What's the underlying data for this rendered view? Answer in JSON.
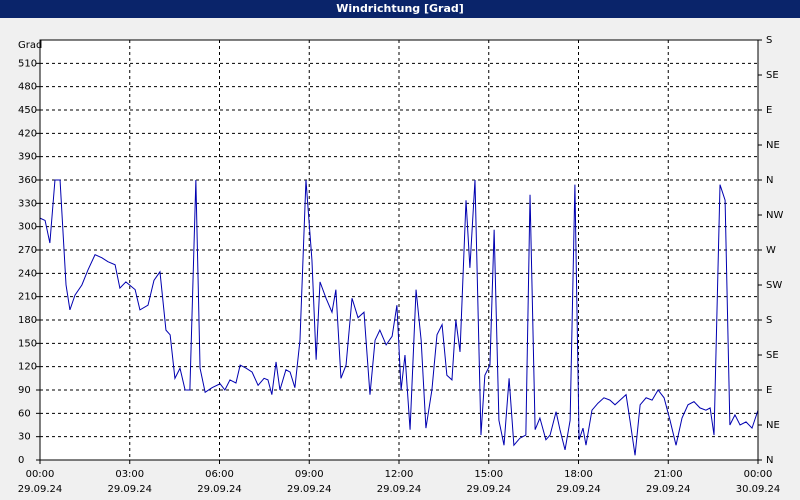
{
  "chart_data": {
    "type": "line",
    "title": "Windrichtung [Grad]",
    "y_label": "Grad",
    "x": [
      0,
      0.17,
      0.33,
      0.5,
      0.67,
      0.87,
      1,
      1.17,
      1.4,
      1.6,
      1.84,
      2.07,
      2.27,
      2.51,
      2.67,
      2.87,
      3.18,
      3.34,
      3.61,
      3.81,
      4.01,
      4.21,
      4.35,
      4.51,
      4.68,
      4.85,
      5.01,
      5.21,
      5.35,
      5.52,
      5.75,
      6.02,
      6.18,
      6.35,
      6.55,
      6.69,
      6.89,
      7.09,
      7.29,
      7.49,
      7.62,
      7.75,
      7.89,
      8.02,
      8.22,
      8.36,
      8.52,
      8.69,
      8.89,
      9.09,
      9.23,
      9.36,
      9.56,
      9.76,
      9.89,
      10.06,
      10.23,
      10.43,
      10.63,
      10.83,
      11.03,
      11.2,
      11.36,
      11.57,
      11.77,
      11.93,
      12.07,
      12.2,
      12.37,
      12.57,
      12.74,
      12.9,
      13.1,
      13.27,
      13.44,
      13.6,
      13.77,
      13.9,
      14.04,
      14.24,
      14.37,
      14.54,
      14.74,
      14.87,
      15.04,
      15.18,
      15.34,
      15.51,
      15.68,
      15.84,
      16.04,
      16.24,
      16.38,
      16.55,
      16.71,
      16.91,
      17.05,
      17.25,
      17.38,
      17.55,
      17.72,
      17.88,
      18.02,
      18.15,
      18.25,
      18.45,
      18.65,
      18.85,
      19.05,
      19.22,
      19.39,
      19.59,
      19.72,
      19.89,
      20.06,
      20.26,
      20.46,
      20.66,
      20.86,
      21.06,
      21.26,
      21.46,
      21.66,
      21.86,
      22.06,
      22.26,
      22.4,
      22.53,
      22.73,
      22.9,
      23.06,
      23.23,
      23.4,
      23.6,
      23.8,
      24
    ],
    "series": [
      {
        "color": "#0000b0",
        "values": [
          311,
          308,
          279,
          360,
          360,
          225,
          193,
          212,
          225,
          244,
          264,
          260,
          255,
          251,
          221,
          229,
          219,
          193,
          199,
          231,
          242,
          167,
          161,
          105,
          118,
          90,
          90,
          360,
          118,
          87,
          93,
          98,
          90,
          103,
          99,
          122,
          118,
          113,
          96,
          105,
          103,
          84,
          126,
          90,
          116,
          113,
          93,
          154,
          360,
          257,
          129,
          229,
          208,
          190,
          219,
          105,
          122,
          208,
          183,
          190,
          84,
          154,
          167,
          148,
          159,
          199,
          90,
          135,
          39,
          219,
          154,
          41,
          90,
          161,
          174,
          109,
          103,
          180,
          139,
          334,
          247,
          360,
          32,
          109,
          122,
          296,
          51,
          19,
          105,
          19,
          28,
          32,
          341,
          39,
          54,
          26,
          32,
          62,
          39,
          13,
          51,
          354,
          26,
          41,
          19,
          64,
          73,
          80,
          77,
          71,
          77,
          84,
          51,
          6,
          71,
          80,
          77,
          90,
          80,
          51,
          19,
          54,
          71,
          75,
          67,
          64,
          67,
          32,
          354,
          334,
          45,
          58,
          45,
          49,
          41,
          64
        ]
      }
    ],
    "xlim": [
      0,
      24
    ],
    "xticks": [
      {
        "value": 0,
        "label": "00:00"
      },
      {
        "value": 3,
        "label": "03:00"
      },
      {
        "value": 6,
        "label": "06:00"
      },
      {
        "value": 9,
        "label": "09:00"
      },
      {
        "value": 12,
        "label": "12:00"
      },
      {
        "value": 15,
        "label": "15:00"
      },
      {
        "value": 18,
        "label": "18:00"
      },
      {
        "value": 21,
        "label": "21:00"
      },
      {
        "value": 24,
        "label": "00:00"
      }
    ],
    "xtick_dates": [
      "29.09.24",
      "29.09.24",
      "29.09.24",
      "29.09.24",
      "29.09.24",
      "29.09.24",
      "29.09.24",
      "29.09.24",
      "30.09.24"
    ],
    "ylim": [
      0,
      540
    ],
    "yticks": [
      0,
      30,
      60,
      90,
      120,
      150,
      180,
      210,
      240,
      270,
      300,
      330,
      360,
      390,
      420,
      450,
      480,
      510
    ],
    "y2lim": [
      0,
      540
    ],
    "y2ticks": [
      {
        "value": 0,
        "label": "N"
      },
      {
        "value": 45,
        "label": "NE"
      },
      {
        "value": 90,
        "label": "E"
      },
      {
        "value": 135,
        "label": "SE"
      },
      {
        "value": 180,
        "label": "S"
      },
      {
        "value": 225,
        "label": "SW"
      },
      {
        "value": 270,
        "label": "W"
      },
      {
        "value": 315,
        "label": "NW"
      },
      {
        "value": 360,
        "label": "N"
      },
      {
        "value": 405,
        "label": "NE"
      },
      {
        "value": 450,
        "label": "E"
      },
      {
        "value": 495,
        "label": "SE"
      },
      {
        "value": 540,
        "label": "S"
      }
    ],
    "grid": true
  }
}
